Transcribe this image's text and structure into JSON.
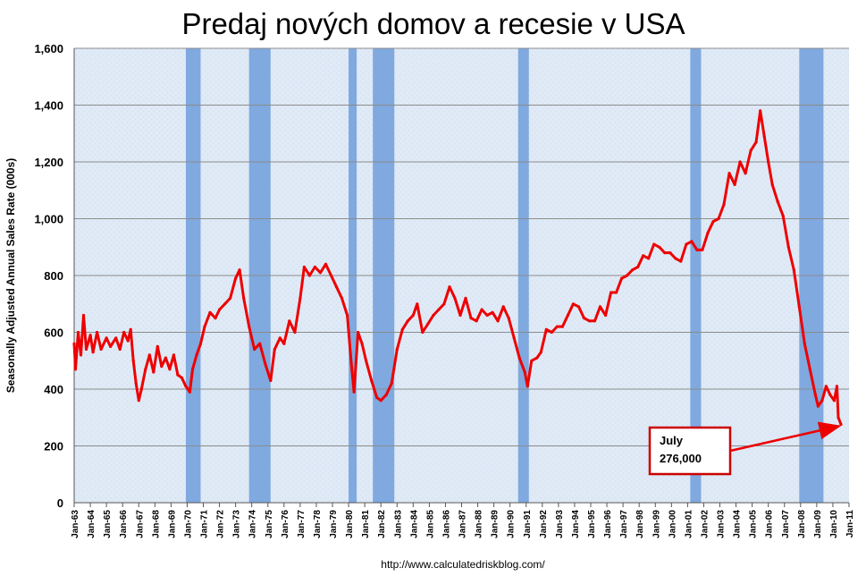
{
  "chart_data": {
    "type": "line",
    "title": "Predaj nových domov a recesie v USA",
    "ylabel": "Seasonally Adjusted Annual Sales Rate (000s)",
    "xlabel": "",
    "source": "http://www.calculatedriskblog.com/",
    "ylim": [
      0,
      1600
    ],
    "y_ticks": [
      "0",
      "200",
      "400",
      "600",
      "800",
      "1,000",
      "1,200",
      "1,400",
      "1,600"
    ],
    "x_ticks": [
      "Jan-63",
      "Jan-64",
      "Jan-65",
      "Jan-66",
      "Jan-67",
      "Jan-68",
      "Jan-69",
      "Jan-70",
      "Jan-71",
      "Jan-72",
      "Jan-73",
      "Jan-74",
      "Jan-75",
      "Jan-76",
      "Jan-77",
      "Jan-78",
      "Jan-79",
      "Jan-80",
      "Jan-81",
      "Jan-82",
      "Jan-83",
      "Jan-84",
      "Jan-85",
      "Jan-86",
      "Jan-87",
      "Jan-88",
      "Jan-89",
      "Jan-90",
      "Jan-91",
      "Jan-92",
      "Jan-93",
      "Jan-94",
      "Jan-95",
      "Jan-96",
      "Jan-97",
      "Jan-98",
      "Jan-99",
      "Jan-00",
      "Jan-01",
      "Jan-02",
      "Jan-03",
      "Jan-04",
      "Jan-05",
      "Jan-06",
      "Jan-07",
      "Jan-08",
      "Jan-09",
      "Jan-10",
      "Jan-11"
    ],
    "grid": true,
    "legend": "none",
    "colors": {
      "line": "#ee0000",
      "recession": "#7fa9df",
      "plot_bg": "#dfeaf6",
      "annotation_border": "#cc0000"
    },
    "recessions": [
      {
        "start": "1969-12",
        "end": "1970-11"
      },
      {
        "start": "1973-11",
        "end": "1975-03"
      },
      {
        "start": "1980-01",
        "end": "1980-07"
      },
      {
        "start": "1981-07",
        "end": "1982-11"
      },
      {
        "start": "1990-07",
        "end": "1991-03"
      },
      {
        "start": "2001-03",
        "end": "2001-11"
      },
      {
        "start": "2007-12",
        "end": "2009-06"
      }
    ],
    "series": [
      {
        "values": [
          {
            "x": "1963-01",
            "y": 560
          },
          {
            "x": "1963-02",
            "y": 470
          },
          {
            "x": "1963-04",
            "y": 600
          },
          {
            "x": "1963-06",
            "y": 520
          },
          {
            "x": "1963-08",
            "y": 660
          },
          {
            "x": "1963-10",
            "y": 540
          },
          {
            "x": "1964-01",
            "y": 590
          },
          {
            "x": "1964-03",
            "y": 530
          },
          {
            "x": "1964-06",
            "y": 600
          },
          {
            "x": "1964-09",
            "y": 540
          },
          {
            "x": "1965-01",
            "y": 580
          },
          {
            "x": "1965-04",
            "y": 550
          },
          {
            "x": "1965-08",
            "y": 580
          },
          {
            "x": "1965-11",
            "y": 540
          },
          {
            "x": "1966-02",
            "y": 600
          },
          {
            "x": "1966-05",
            "y": 570
          },
          {
            "x": "1966-07",
            "y": 610
          },
          {
            "x": "1966-09",
            "y": 500
          },
          {
            "x": "1966-11",
            "y": 420
          },
          {
            "x": "1967-01",
            "y": 360
          },
          {
            "x": "1967-03",
            "y": 400
          },
          {
            "x": "1967-06",
            "y": 470
          },
          {
            "x": "1967-09",
            "y": 520
          },
          {
            "x": "1967-12",
            "y": 460
          },
          {
            "x": "1968-03",
            "y": 550
          },
          {
            "x": "1968-06",
            "y": 480
          },
          {
            "x": "1968-09",
            "y": 510
          },
          {
            "x": "1968-12",
            "y": 470
          },
          {
            "x": "1969-03",
            "y": 520
          },
          {
            "x": "1969-06",
            "y": 450
          },
          {
            "x": "1969-09",
            "y": 440
          },
          {
            "x": "1969-12",
            "y": 410
          },
          {
            "x": "1970-03",
            "y": 390
          },
          {
            "x": "1970-05",
            "y": 470
          },
          {
            "x": "1970-08",
            "y": 520
          },
          {
            "x": "1970-11",
            "y": 560
          },
          {
            "x": "1971-02",
            "y": 620
          },
          {
            "x": "1971-06",
            "y": 670
          },
          {
            "x": "1971-10",
            "y": 650
          },
          {
            "x": "1972-01",
            "y": 680
          },
          {
            "x": "1972-05",
            "y": 700
          },
          {
            "x": "1972-09",
            "y": 720
          },
          {
            "x": "1973-01",
            "y": 790
          },
          {
            "x": "1973-04",
            "y": 820
          },
          {
            "x": "1973-07",
            "y": 720
          },
          {
            "x": "1973-11",
            "y": 620
          },
          {
            "x": "1974-03",
            "y": 540
          },
          {
            "x": "1974-07",
            "y": 560
          },
          {
            "x": "1974-11",
            "y": 490
          },
          {
            "x": "1975-03",
            "y": 430
          },
          {
            "x": "1975-06",
            "y": 540
          },
          {
            "x": "1975-10",
            "y": 580
          },
          {
            "x": "1976-01",
            "y": 560
          },
          {
            "x": "1976-05",
            "y": 640
          },
          {
            "x": "1976-09",
            "y": 600
          },
          {
            "x": "1977-01",
            "y": 720
          },
          {
            "x": "1977-04",
            "y": 830
          },
          {
            "x": "1977-08",
            "y": 800
          },
          {
            "x": "1977-12",
            "y": 830
          },
          {
            "x": "1978-04",
            "y": 810
          },
          {
            "x": "1978-08",
            "y": 840
          },
          {
            "x": "1978-12",
            "y": 800
          },
          {
            "x": "1979-04",
            "y": 760
          },
          {
            "x": "1979-08",
            "y": 720
          },
          {
            "x": "1979-12",
            "y": 660
          },
          {
            "x": "1980-03",
            "y": 490
          },
          {
            "x": "1980-05",
            "y": 390
          },
          {
            "x": "1980-08",
            "y": 600
          },
          {
            "x": "1980-11",
            "y": 560
          },
          {
            "x": "1981-02",
            "y": 500
          },
          {
            "x": "1981-06",
            "y": 430
          },
          {
            "x": "1981-10",
            "y": 370
          },
          {
            "x": "1982-01",
            "y": 360
          },
          {
            "x": "1982-05",
            "y": 380
          },
          {
            "x": "1982-09",
            "y": 420
          },
          {
            "x": "1983-01",
            "y": 540
          },
          {
            "x": "1983-05",
            "y": 610
          },
          {
            "x": "1983-09",
            "y": 640
          },
          {
            "x": "1984-01",
            "y": 660
          },
          {
            "x": "1984-04",
            "y": 700
          },
          {
            "x": "1984-08",
            "y": 600
          },
          {
            "x": "1984-12",
            "y": 630
          },
          {
            "x": "1985-04",
            "y": 660
          },
          {
            "x": "1985-08",
            "y": 680
          },
          {
            "x": "1985-12",
            "y": 700
          },
          {
            "x": "1986-04",
            "y": 760
          },
          {
            "x": "1986-08",
            "y": 720
          },
          {
            "x": "1986-12",
            "y": 660
          },
          {
            "x": "1987-04",
            "y": 720
          },
          {
            "x": "1987-08",
            "y": 650
          },
          {
            "x": "1987-12",
            "y": 640
          },
          {
            "x": "1988-04",
            "y": 680
          },
          {
            "x": "1988-08",
            "y": 660
          },
          {
            "x": "1988-12",
            "y": 670
          },
          {
            "x": "1989-04",
            "y": 640
          },
          {
            "x": "1989-08",
            "y": 690
          },
          {
            "x": "1989-12",
            "y": 650
          },
          {
            "x": "1990-04",
            "y": 580
          },
          {
            "x": "1990-08",
            "y": 510
          },
          {
            "x": "1990-12",
            "y": 460
          },
          {
            "x": "1991-02",
            "y": 410
          },
          {
            "x": "1991-05",
            "y": 500
          },
          {
            "x": "1991-09",
            "y": 510
          },
          {
            "x": "1991-12",
            "y": 530
          },
          {
            "x": "1992-04",
            "y": 610
          },
          {
            "x": "1992-08",
            "y": 600
          },
          {
            "x": "1992-12",
            "y": 620
          },
          {
            "x": "1993-04",
            "y": 620
          },
          {
            "x": "1993-08",
            "y": 660
          },
          {
            "x": "1993-12",
            "y": 700
          },
          {
            "x": "1994-04",
            "y": 690
          },
          {
            "x": "1994-08",
            "y": 650
          },
          {
            "x": "1994-12",
            "y": 640
          },
          {
            "x": "1995-04",
            "y": 640
          },
          {
            "x": "1995-08",
            "y": 690
          },
          {
            "x": "1995-12",
            "y": 660
          },
          {
            "x": "1996-04",
            "y": 740
          },
          {
            "x": "1996-08",
            "y": 740
          },
          {
            "x": "1996-12",
            "y": 790
          },
          {
            "x": "1997-04",
            "y": 800
          },
          {
            "x": "1997-08",
            "y": 820
          },
          {
            "x": "1997-12",
            "y": 830
          },
          {
            "x": "1998-04",
            "y": 870
          },
          {
            "x": "1998-08",
            "y": 860
          },
          {
            "x": "1998-12",
            "y": 910
          },
          {
            "x": "1999-04",
            "y": 900
          },
          {
            "x": "1999-08",
            "y": 880
          },
          {
            "x": "1999-12",
            "y": 880
          },
          {
            "x": "2000-04",
            "y": 860
          },
          {
            "x": "2000-08",
            "y": 850
          },
          {
            "x": "2000-12",
            "y": 910
          },
          {
            "x": "2001-04",
            "y": 920
          },
          {
            "x": "2001-08",
            "y": 890
          },
          {
            "x": "2001-12",
            "y": 890
          },
          {
            "x": "2002-04",
            "y": 950
          },
          {
            "x": "2002-08",
            "y": 990
          },
          {
            "x": "2002-12",
            "y": 1000
          },
          {
            "x": "2003-04",
            "y": 1050
          },
          {
            "x": "2003-08",
            "y": 1160
          },
          {
            "x": "2003-12",
            "y": 1120
          },
          {
            "x": "2004-04",
            "y": 1200
          },
          {
            "x": "2004-08",
            "y": 1160
          },
          {
            "x": "2004-12",
            "y": 1240
          },
          {
            "x": "2005-04",
            "y": 1270
          },
          {
            "x": "2005-07",
            "y": 1380
          },
          {
            "x": "2005-10",
            "y": 1290
          },
          {
            "x": "2006-01",
            "y": 1200
          },
          {
            "x": "2006-04",
            "y": 1120
          },
          {
            "x": "2006-08",
            "y": 1060
          },
          {
            "x": "2006-12",
            "y": 1010
          },
          {
            "x": "2007-04",
            "y": 900
          },
          {
            "x": "2007-08",
            "y": 820
          },
          {
            "x": "2007-12",
            "y": 690
          },
          {
            "x": "2008-04",
            "y": 560
          },
          {
            "x": "2008-08",
            "y": 470
          },
          {
            "x": "2008-12",
            "y": 380
          },
          {
            "x": "2009-02",
            "y": 340
          },
          {
            "x": "2009-05",
            "y": 360
          },
          {
            "x": "2009-08",
            "y": 410
          },
          {
            "x": "2009-11",
            "y": 380
          },
          {
            "x": "2010-02",
            "y": 360
          },
          {
            "x": "2010-04",
            "y": 410
          },
          {
            "x": "2010-05",
            "y": 300
          },
          {
            "x": "2010-07",
            "y": 276
          }
        ]
      }
    ],
    "annotations": [
      {
        "lines": [
          "July",
          "276,000"
        ],
        "points_to": {
          "x": "2010-07",
          "y": 276
        }
      }
    ]
  }
}
